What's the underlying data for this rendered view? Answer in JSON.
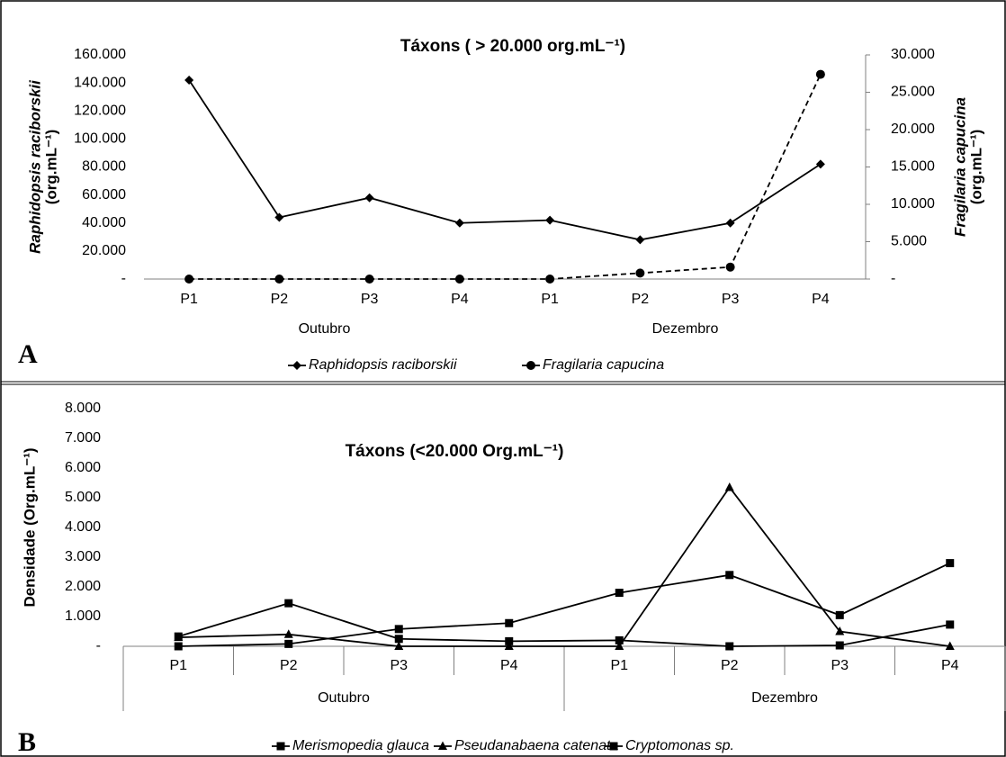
{
  "chart_data": [
    {
      "type": "line",
      "panel_label": "A",
      "title": "Táxons ( > 20.000 org.mL⁻¹)",
      "ylabel": [
        "Raphidopsis raciborskii",
        "(org.mL⁻¹)"
      ],
      "y2label": [
        "Fragilaria capucina",
        "(org.mL⁻¹)"
      ],
      "categories": [
        "P1",
        "P2",
        "P3",
        "P4",
        "P1",
        "P2",
        "P3",
        "P4"
      ],
      "category_groups": [
        "Outubro",
        "Dezembro"
      ],
      "ylim": [
        0,
        160000
      ],
      "yticks": [
        {
          "value": 0,
          "label": "-"
        },
        {
          "value": 20000,
          "label": "20.000"
        },
        {
          "value": 40000,
          "label": "40.000"
        },
        {
          "value": 60000,
          "label": "60.000"
        },
        {
          "value": 80000,
          "label": "80.000"
        },
        {
          "value": 100000,
          "label": "100.000"
        },
        {
          "value": 120000,
          "label": "120.000"
        },
        {
          "value": 140000,
          "label": "140.000"
        },
        {
          "value": 160000,
          "label": "160.000"
        }
      ],
      "y2lim": [
        0,
        30000
      ],
      "y2ticks": [
        {
          "value": 0,
          "label": "-"
        },
        {
          "value": 5000,
          "label": "5.000"
        },
        {
          "value": 10000,
          "label": "10.000"
        },
        {
          "value": 15000,
          "label": "15.000"
        },
        {
          "value": 20000,
          "label": "20.000"
        },
        {
          "value": 25000,
          "label": "25.000"
        },
        {
          "value": 30000,
          "label": "30.000"
        }
      ],
      "series": [
        {
          "name": "Raphidopsis raciborskii",
          "color": "#000000",
          "marker": "diamond",
          "style": "solid",
          "values": [
            142000,
            44000,
            58000,
            40000,
            42000,
            28000,
            40000,
            82000
          ]
        },
        {
          "name": "Fragilaria capucina",
          "color": "#000000",
          "marker": "circle",
          "style": "dashed",
          "axis": "y2",
          "values": [
            0,
            0,
            0,
            0,
            0,
            800,
            1600,
            27400
          ]
        }
      ]
    },
    {
      "type": "line",
      "panel_label": "B",
      "title": "Táxons (<20.000  Org.mL⁻¹)",
      "ylabel": [
        "Densidade (Org.mL⁻¹)"
      ],
      "categories": [
        "P1",
        "P2",
        "P3",
        "P4",
        "P1",
        "P2",
        "P3",
        "P4"
      ],
      "category_groups": [
        "Outubro",
        "Dezembro"
      ],
      "ylim": [
        0,
        8000
      ],
      "yticks": [
        {
          "value": 0,
          "label": "-"
        },
        {
          "value": 1000,
          "label": "1.000"
        },
        {
          "value": 2000,
          "label": "2.000"
        },
        {
          "value": 3000,
          "label": "3.000"
        },
        {
          "value": 4000,
          "label": "4.000"
        },
        {
          "value": 5000,
          "label": "5.000"
        },
        {
          "value": 6000,
          "label": "6.000"
        },
        {
          "value": 7000,
          "label": "7.000"
        },
        {
          "value": 8000,
          "label": "8.000"
        }
      ],
      "series": [
        {
          "name": "Merismopedia glauca",
          "color": "#000000",
          "marker": "square",
          "style": "solid",
          "values": [
            0,
            80,
            580,
            780,
            1800,
            2400,
            1050,
            2800
          ]
        },
        {
          "name": "Pseudanabaena  catenata",
          "color": "#000000",
          "marker": "triangle",
          "style": "solid",
          "values": [
            300,
            400,
            0,
            0,
            0,
            5350,
            500,
            0
          ]
        },
        {
          "name": "Cryptomonas sp.",
          "color": "#000000",
          "marker": "square",
          "style": "solid",
          "values": [
            330,
            1450,
            250,
            170,
            200,
            0,
            30,
            730
          ]
        }
      ]
    }
  ]
}
